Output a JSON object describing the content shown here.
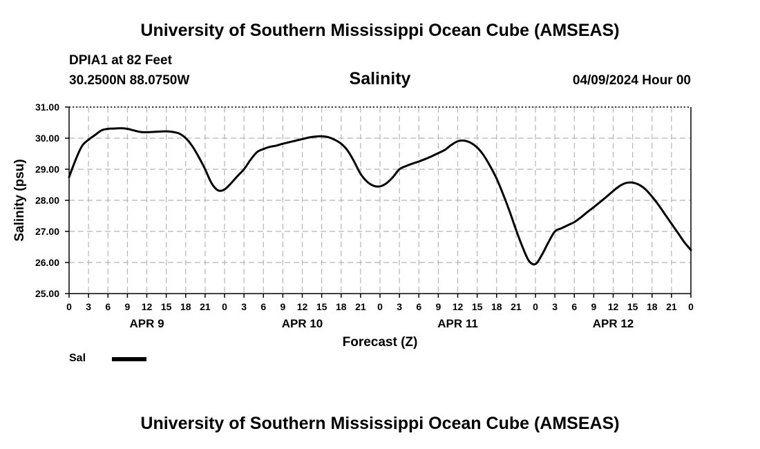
{
  "header": {
    "title": "University of Southern Mississippi Ocean Cube (AMSEAS)",
    "station": "DPIA1 at 82 Feet",
    "coords": "30.2500N  88.0750W",
    "variable": "Salinity",
    "run": "04/09/2024 Hour 00"
  },
  "footer": {
    "title": "University of Southern Mississippi Ocean Cube (AMSEAS)"
  },
  "legend": {
    "label": "Sal",
    "color": "#000000"
  },
  "chart_data": {
    "type": "line",
    "title": "Salinity",
    "xlabel": "Forecast (Z)",
    "ylabel": "Salinity (psu)",
    "ylim": [
      25.0,
      31.0
    ],
    "yticks": [
      "25.00",
      "26.00",
      "27.00",
      "28.00",
      "29.00",
      "30.00",
      "31.00"
    ],
    "xlim_hours": [
      0,
      96
    ],
    "xtick_step_hours": 3,
    "xtick_labels": [
      "0",
      "3",
      "6",
      "9",
      "12",
      "15",
      "18",
      "21",
      "0",
      "3",
      "6",
      "9",
      "12",
      "15",
      "18",
      "21",
      "0",
      "3",
      "6",
      "9",
      "12",
      "15",
      "18",
      "21",
      "0",
      "3",
      "6",
      "9",
      "12",
      "15",
      "18",
      "21",
      "0"
    ],
    "day_labels": [
      {
        "label": "APR 9",
        "hour": 12
      },
      {
        "label": "APR 10",
        "hour": 36
      },
      {
        "label": "APR 11",
        "hour": 60
      },
      {
        "label": "APR 12",
        "hour": 84
      }
    ],
    "grid": true,
    "series": [
      {
        "name": "Sal",
        "color": "#000000",
        "x": [
          0,
          1,
          2,
          3,
          4,
          5,
          6,
          7,
          8,
          9,
          10,
          11,
          12,
          13,
          14,
          15,
          16,
          17,
          18,
          19,
          20,
          21,
          22,
          23,
          24,
          25,
          26,
          27,
          28,
          29,
          30,
          31,
          32,
          33,
          34,
          35,
          36,
          37,
          38,
          39,
          40,
          41,
          42,
          43,
          44,
          45,
          46,
          47,
          48,
          49,
          50,
          51,
          52,
          53,
          54,
          55,
          56,
          57,
          58,
          59,
          60,
          61,
          62,
          63,
          64,
          65,
          66,
          67,
          68,
          69,
          70,
          71,
          72,
          73,
          74,
          75,
          76,
          77,
          78,
          79,
          80,
          81,
          82,
          83,
          84,
          85,
          86,
          87,
          88,
          89,
          90,
          91,
          92,
          93,
          94,
          95,
          96
        ],
        "values": [
          28.75,
          29.3,
          29.75,
          29.95,
          30.1,
          30.25,
          30.3,
          30.31,
          30.32,
          30.3,
          30.25,
          30.2,
          30.19,
          30.2,
          30.21,
          30.22,
          30.2,
          30.15,
          30.0,
          29.75,
          29.4,
          29.0,
          28.55,
          28.32,
          28.35,
          28.55,
          28.78,
          29.0,
          29.3,
          29.55,
          29.65,
          29.72,
          29.76,
          29.82,
          29.87,
          29.92,
          29.97,
          30.02,
          30.05,
          30.06,
          30.03,
          29.95,
          29.82,
          29.6,
          29.25,
          28.85,
          28.6,
          28.47,
          28.45,
          28.55,
          28.75,
          29.0,
          29.1,
          29.18,
          29.25,
          29.33,
          29.42,
          29.52,
          29.62,
          29.78,
          29.9,
          29.92,
          29.85,
          29.7,
          29.45,
          29.1,
          28.7,
          28.2,
          27.65,
          27.05,
          26.5,
          26.05,
          25.95,
          26.25,
          26.65,
          27.0,
          27.1,
          27.2,
          27.3,
          27.45,
          27.62,
          27.78,
          27.95,
          28.12,
          28.3,
          28.46,
          28.56,
          28.57,
          28.5,
          28.35,
          28.12,
          27.85,
          27.55,
          27.25,
          26.95,
          26.65,
          26.4
        ]
      }
    ]
  }
}
